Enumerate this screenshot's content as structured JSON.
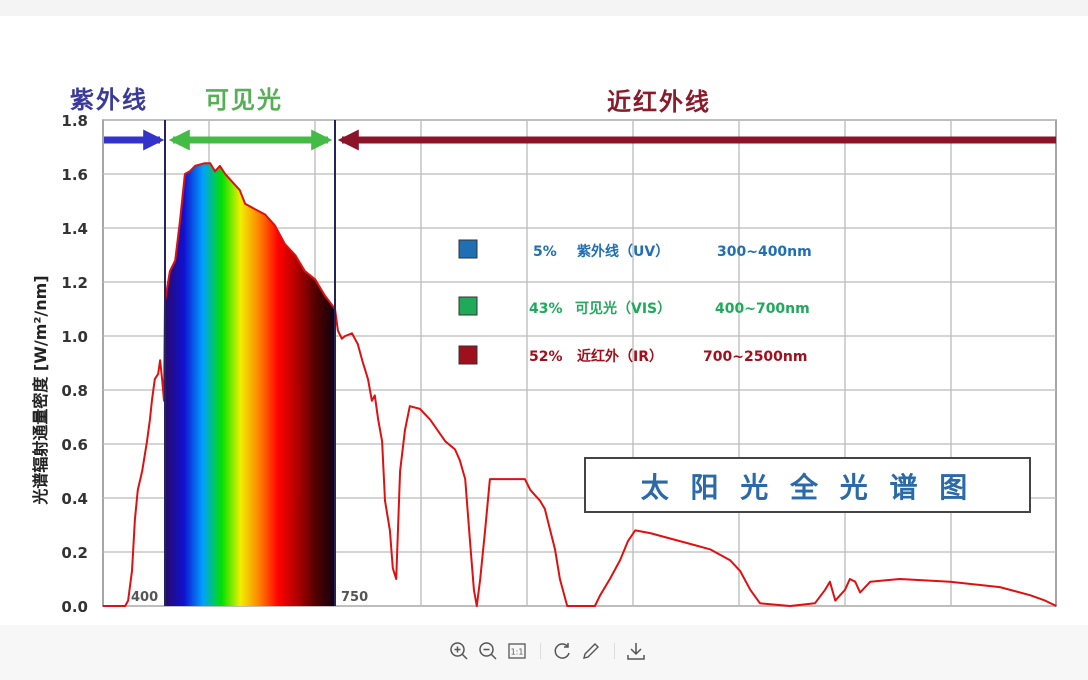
{
  "viewer": {
    "toolbar": [
      {
        "icon": "zoom-in-icon",
        "label": ""
      },
      {
        "icon": "zoom-out-icon",
        "label": ""
      },
      {
        "icon": "actual-size-icon",
        "label": "1:1"
      },
      {
        "icon": "rotate-icon",
        "label": ""
      },
      {
        "icon": "edit-pencil-icon",
        "label": ""
      },
      {
        "icon": "download-icon",
        "label": ""
      }
    ]
  },
  "chart_data": {
    "type": "area",
    "title": "太 阳 光 全 光 谱 图",
    "ylabel": "光谱辐射通量密度 [W/m²/nm]",
    "xlabel": "",
    "ylim": [
      0,
      1.8
    ],
    "xlim": [
      272,
      2235
    ],
    "yticks": [
      "0.0",
      "0.2",
      "0.4",
      "0.6",
      "0.8",
      "1.0",
      "1.2",
      "1.4",
      "1.6",
      "1.8"
    ],
    "x_markers": [
      {
        "x": 400,
        "label": "400"
      },
      {
        "x": 750,
        "label": "750"
      }
    ],
    "grid": true,
    "regions": [
      {
        "label": "紫外线",
        "from": 272,
        "to": 400,
        "color": "#3333aa",
        "arrow": "right"
      },
      {
        "label": "可见光",
        "from": 400,
        "to": 750,
        "color": "#44bb44",
        "arrow": "both"
      },
      {
        "label": "近红外线",
        "from": 750,
        "to": 2235,
        "color": "#8b1428",
        "arrow": "left"
      }
    ],
    "legend": [
      {
        "percent": "5%",
        "name": "紫外线（UV）",
        "range": "300~400nm",
        "color": "#1f6fb5"
      },
      {
        "percent": "43%",
        "name": "可见光（VIS）",
        "range": "400~700nm",
        "color": "#1faa5a"
      },
      {
        "percent": "52%",
        "name": "近红外（IR）",
        "range": "700~2500nm",
        "color": "#a0101c"
      }
    ],
    "series": [
      {
        "color": "#e01010",
        "x": [
          272,
          318,
          324,
          332,
          338,
          344,
          353,
          363,
          369,
          373,
          379,
          386,
          390,
          394,
          398,
          400,
          410,
          421,
          431,
          441,
          451,
          462,
          482,
          493,
          503,
          513,
          524,
          534,
          554,
          565,
          585,
          606,
          626,
          647,
          668,
          688,
          709,
          729,
          750,
          756,
          764,
          771,
          785,
          797,
          806,
          818,
          826,
          832,
          839,
          847,
          853,
          863,
          869,
          876,
          884,
          894,
          904,
          925,
          946,
          977,
          997,
          1007,
          1018,
          1028,
          1036,
          1042,
          1049,
          1059,
          1069,
          1090,
          1121,
          1141,
          1152,
          1162,
          1172,
          1182,
          1193,
          1203,
          1213,
          1228,
          1285,
          1296,
          1316,
          1337,
          1353,
          1368,
          1399,
          1440,
          1481,
          1522,
          1563,
          1584,
          1605,
          1625,
          1687,
          1738,
          1759,
          1769,
          1780,
          1800,
          1810,
          1821,
          1831,
          1852,
          1913,
          2016,
          2119,
          2181,
          2212,
          2235
        ],
        "y": [
          0,
          0,
          0.02,
          0.13,
          0.32,
          0.43,
          0.5,
          0.61,
          0.69,
          0.76,
          0.84,
          0.86,
          0.91,
          0.84,
          0.76,
          1.13,
          1.24,
          1.28,
          1.43,
          1.6,
          1.61,
          1.63,
          1.64,
          1.64,
          1.61,
          1.63,
          1.6,
          1.58,
          1.54,
          1.49,
          1.47,
          1.45,
          1.41,
          1.34,
          1.3,
          1.24,
          1.21,
          1.15,
          1.1,
          1.02,
          0.99,
          1.0,
          1.01,
          0.97,
          0.91,
          0.84,
          0.76,
          0.78,
          0.69,
          0.61,
          0.39,
          0.28,
          0.14,
          0.1,
          0.5,
          0.65,
          0.74,
          0.73,
          0.69,
          0.61,
          0.58,
          0.54,
          0.47,
          0.24,
          0.06,
          0,
          0.1,
          0.28,
          0.47,
          0.47,
          0.47,
          0.47,
          0.43,
          0.41,
          0.39,
          0.36,
          0.28,
          0.21,
          0.1,
          0,
          0,
          0.04,
          0.1,
          0.17,
          0.24,
          0.28,
          0.27,
          0.25,
          0.23,
          0.21,
          0.17,
          0.13,
          0.06,
          0.01,
          0,
          0.01,
          0.06,
          0.09,
          0.02,
          0.06,
          0.1,
          0.09,
          0.05,
          0.09,
          0.1,
          0.09,
          0.07,
          0.04,
          0.02,
          0
        ]
      }
    ],
    "spectrum_gradient": [
      "#2a0a6a",
      "#1010d0",
      "#00a0ff",
      "#00e000",
      "#f0f000",
      "#ff8000",
      "#ff0000",
      "#b00000",
      "#500000",
      "#100010"
    ]
  }
}
